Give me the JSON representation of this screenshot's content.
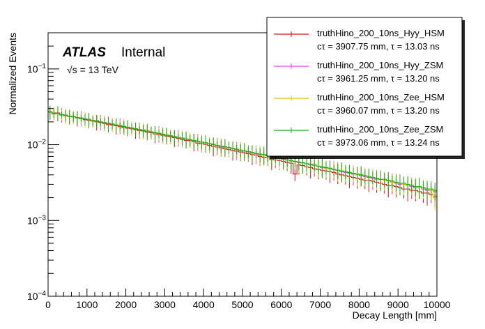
{
  "chart_data": {
    "type": "line",
    "title": "",
    "xlabel": "Decay Length [mm]",
    "ylabel": "Normalized Events",
    "xlim": [
      0,
      10000
    ],
    "ylim": [
      0.0001,
      0.3
    ],
    "yscale": "log",
    "grid": false,
    "legend_position": "top-right",
    "xticks": [
      0,
      1000,
      2000,
      3000,
      4000,
      5000,
      6000,
      7000,
      8000,
      9000,
      10000
    ],
    "xtick_labels": [
      "0",
      "1000",
      "2000",
      "3000",
      "4000",
      "5000",
      "6000",
      "7000",
      "8000",
      "9000",
      "10000"
    ],
    "yticks": [
      0.1,
      0.01,
      0.001,
      0.0001
    ],
    "ytick_labels": [
      {
        "base": "10",
        "exp": "−1"
      },
      {
        "base": "10",
        "exp": "−2"
      },
      {
        "base": "10",
        "exp": "−3"
      },
      {
        "base": "10",
        "exp": "−4"
      }
    ],
    "annotations": {
      "experiment": "ATLAS",
      "status": "Internal",
      "energy": "√s = 13 TeV"
    },
    "binning": {
      "nbins": 100,
      "width_mm": 100
    },
    "series": [
      {
        "name": "truthHino_200_10ns_Hyy_HSM",
        "stats": "cτ = 3907.75 mm, τ = 13.03 ns",
        "color": "#e01010",
        "ctau_mm": 3907.75,
        "values": [
          0.0272,
          0.0256,
          0.0262,
          0.0247,
          0.0241,
          0.0236,
          0.0232,
          0.0226,
          0.022,
          0.0213,
          0.021,
          0.0205,
          0.02,
          0.0196,
          0.0191,
          0.0184,
          0.0182,
          0.0178,
          0.0173,
          0.0168,
          0.0165,
          0.0162,
          0.0158,
          0.0154,
          0.0151,
          0.0147,
          0.0144,
          0.0139,
          0.0136,
          0.0133,
          0.013,
          0.0127,
          0.0124,
          0.0121,
          0.0117,
          0.0114,
          0.0113,
          0.011,
          0.0105,
          0.0103,
          0.0101,
          0.0098,
          0.0095,
          0.0093,
          0.0091,
          0.0088,
          0.0086,
          0.0084,
          0.0082,
          0.008,
          0.0078,
          0.0076,
          0.0074,
          0.0073,
          0.007,
          0.0068,
          0.0067,
          0.0064,
          0.0063,
          0.0062,
          0.006,
          0.0058,
          0.0057,
          0.0041,
          0.0054,
          0.0053,
          0.0051,
          0.005,
          0.0048,
          0.0047,
          0.0046,
          0.0045,
          0.0044,
          0.0043,
          0.0041,
          0.004,
          0.0039,
          0.0038,
          0.0037,
          0.0036,
          0.0035,
          0.0034,
          0.0034,
          0.0033,
          0.0032,
          0.0031,
          0.003,
          0.0029,
          0.0029,
          0.0028,
          0.0027,
          0.0026,
          0.0026,
          0.0025,
          0.0025,
          0.0024,
          0.0023,
          0.0023,
          0.0022,
          0.0021
        ]
      },
      {
        "name": "truthHino_200_10ns_Hyy_ZSM",
        "stats": "cτ = 3961.25 mm, τ = 13.20 ns",
        "color": "#ee44ee",
        "ctau_mm": 3961.25,
        "values": [
          0.0268,
          0.0265,
          0.0255,
          0.0251,
          0.0247,
          0.0239,
          0.0236,
          0.0229,
          0.0226,
          0.022,
          0.0216,
          0.0209,
          0.0207,
          0.0201,
          0.0196,
          0.0193,
          0.0188,
          0.0183,
          0.018,
          0.0174,
          0.0171,
          0.0167,
          0.0163,
          0.0158,
          0.0157,
          0.0152,
          0.0148,
          0.0145,
          0.0141,
          0.0138,
          0.0134,
          0.0131,
          0.0128,
          0.0125,
          0.0122,
          0.0119,
          0.0116,
          0.0113,
          0.0111,
          0.0108,
          0.0106,
          0.0103,
          0.01,
          0.0098,
          0.0095,
          0.0093,
          0.0091,
          0.0088,
          0.0086,
          0.0084,
          0.0082,
          0.008,
          0.0078,
          0.0076,
          0.0074,
          0.0073,
          0.0071,
          0.0069,
          0.0068,
          0.0066,
          0.0064,
          0.0063,
          0.0061,
          0.006,
          0.0058,
          0.0057,
          0.0056,
          0.0054,
          0.0053,
          0.0052,
          0.005,
          0.0049,
          0.0048,
          0.0047,
          0.0046,
          0.0044,
          0.0043,
          0.0042,
          0.0041,
          0.004,
          0.0039,
          0.0038,
          0.0037,
          0.0036,
          0.0035,
          0.0035,
          0.0034,
          0.0033,
          0.0032,
          0.0031,
          0.003,
          0.003,
          0.0029,
          0.0028,
          0.0027,
          0.0027,
          0.0026,
          0.0025,
          0.0025,
          0.0024
        ]
      },
      {
        "name": "truthHino_200_10ns_Zee_HSM",
        "stats": "cτ = 3960.07 mm, τ = 13.20 ns",
        "color": "#f0c000",
        "ctau_mm": 3960.07,
        "values": [
          0.0276,
          0.0262,
          0.0258,
          0.025,
          0.0243,
          0.024,
          0.0233,
          0.0229,
          0.0222,
          0.0218,
          0.0214,
          0.0209,
          0.0204,
          0.02,
          0.0196,
          0.0191,
          0.0187,
          0.0182,
          0.0178,
          0.0175,
          0.017,
          0.0166,
          0.0162,
          0.0159,
          0.0155,
          0.0152,
          0.0148,
          0.0145,
          0.0141,
          0.0138,
          0.0135,
          0.0131,
          0.0128,
          0.0125,
          0.0122,
          0.0119,
          0.0117,
          0.0114,
          0.0111,
          0.0108,
          0.0106,
          0.0103,
          0.0101,
          0.0098,
          0.0096,
          0.0094,
          0.0091,
          0.0089,
          0.0087,
          0.0085,
          0.0083,
          0.0081,
          0.0079,
          0.0077,
          0.0075,
          0.0073,
          0.0071,
          0.007,
          0.0068,
          0.0066,
          0.0065,
          0.0063,
          0.0062,
          0.006,
          0.0059,
          0.0057,
          0.0056,
          0.0055,
          0.0053,
          0.0052,
          0.0051,
          0.0049,
          0.0048,
          0.0047,
          0.0046,
          0.0045,
          0.0044,
          0.0043,
          0.0042,
          0.004,
          0.004,
          0.0039,
          0.0038,
          0.0037,
          0.0036,
          0.0035,
          0.0034,
          0.0033,
          0.0032,
          0.0032,
          0.0031,
          0.003,
          0.0029,
          0.0029,
          0.0028,
          0.0027,
          0.0027,
          0.0026,
          0.0025,
          0.002
        ]
      },
      {
        "name": "truthHino_200_10ns_Zee_ZSM",
        "stats": "cτ = 3973.06 mm, τ = 13.24 ns",
        "color": "#10b010",
        "ctau_mm": 3973.06,
        "values": [
          0.027,
          0.0259,
          0.0259,
          0.0249,
          0.0245,
          0.0237,
          0.0234,
          0.0228,
          0.0223,
          0.0217,
          0.0213,
          0.0208,
          0.0205,
          0.0199,
          0.0195,
          0.019,
          0.0187,
          0.0182,
          0.0177,
          0.0174,
          0.017,
          0.0166,
          0.0162,
          0.0158,
          0.0154,
          0.0151,
          0.0148,
          0.0144,
          0.0141,
          0.0137,
          0.0134,
          0.0131,
          0.0128,
          0.0125,
          0.0122,
          0.0119,
          0.0116,
          0.0114,
          0.0111,
          0.0108,
          0.0106,
          0.0103,
          0.0101,
          0.0098,
          0.0096,
          0.0094,
          0.0092,
          0.0089,
          0.0087,
          0.0085,
          0.0083,
          0.0081,
          0.0079,
          0.0077,
          0.0075,
          0.0074,
          0.0072,
          0.007,
          0.0068,
          0.0067,
          0.0065,
          0.0063,
          0.0062,
          0.006,
          0.0059,
          0.0058,
          0.0056,
          0.0055,
          0.0054,
          0.0052,
          0.0051,
          0.005,
          0.0049,
          0.0047,
          0.0046,
          0.0045,
          0.0044,
          0.0043,
          0.0042,
          0.0041,
          0.004,
          0.0039,
          0.0038,
          0.0037,
          0.0036,
          0.0035,
          0.0035,
          0.0034,
          0.0033,
          0.0032,
          0.0031,
          0.0031,
          0.003,
          0.0029,
          0.0028,
          0.0028,
          0.0027,
          0.0026,
          0.0026,
          0.0025
        ]
      }
    ]
  }
}
